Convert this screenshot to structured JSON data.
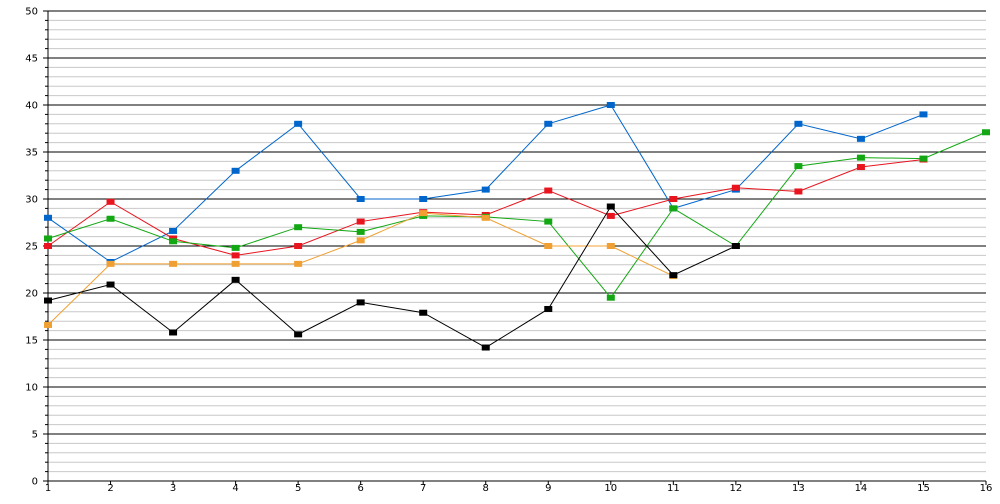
{
  "chart_data": {
    "type": "line",
    "x": [
      1,
      2,
      3,
      4,
      5,
      6,
      7,
      8,
      9,
      10,
      11,
      12,
      13,
      14,
      15,
      16
    ],
    "x_tick_labels": [
      "1",
      "2",
      "3",
      "4",
      "5",
      "6",
      "7",
      "8",
      "9",
      "10",
      "11",
      "12",
      "13",
      "14",
      "15",
      "16"
    ],
    "y_tick_labels": [
      "0",
      "5",
      "10",
      "15",
      "20",
      "25",
      "30",
      "35",
      "40",
      "45",
      "50"
    ],
    "xlim": [
      1,
      16
    ],
    "ylim": [
      0,
      50
    ],
    "major_gridline_step": 5,
    "minor_gridline_step": 1,
    "grid": true,
    "legend": "none",
    "series": [
      {
        "color": "#0066cc",
        "values": [
          28,
          23.3,
          26.6,
          33,
          38,
          30,
          30,
          31,
          38,
          40,
          29,
          31,
          38,
          36.4,
          39,
          null
        ]
      },
      {
        "color": "#e8141e",
        "values": [
          25,
          29.7,
          25.8,
          24,
          25,
          27.6,
          28.6,
          28.3,
          30.9,
          28.2,
          30,
          31.2,
          30.8,
          33.4,
          34.2,
          null
        ]
      },
      {
        "color": "#13a813",
        "values": [
          25.8,
          27.9,
          25.5,
          24.8,
          27,
          26.5,
          28.2,
          28.1,
          27.6,
          19.5,
          29,
          25,
          33.5,
          34.4,
          34.3,
          37.1
        ]
      },
      {
        "color": "#f0a032",
        "values": [
          16.6,
          23.1,
          23.1,
          23.1,
          23.1,
          25.6,
          28.5,
          28,
          25,
          25,
          21.8,
          null,
          null,
          null,
          null,
          null
        ]
      },
      {
        "color": "#000000",
        "values": [
          19.2,
          20.9,
          15.8,
          21.4,
          15.6,
          19,
          17.9,
          14.2,
          18.3,
          29.2,
          21.9,
          25,
          null,
          null,
          null,
          null
        ]
      }
    ]
  }
}
